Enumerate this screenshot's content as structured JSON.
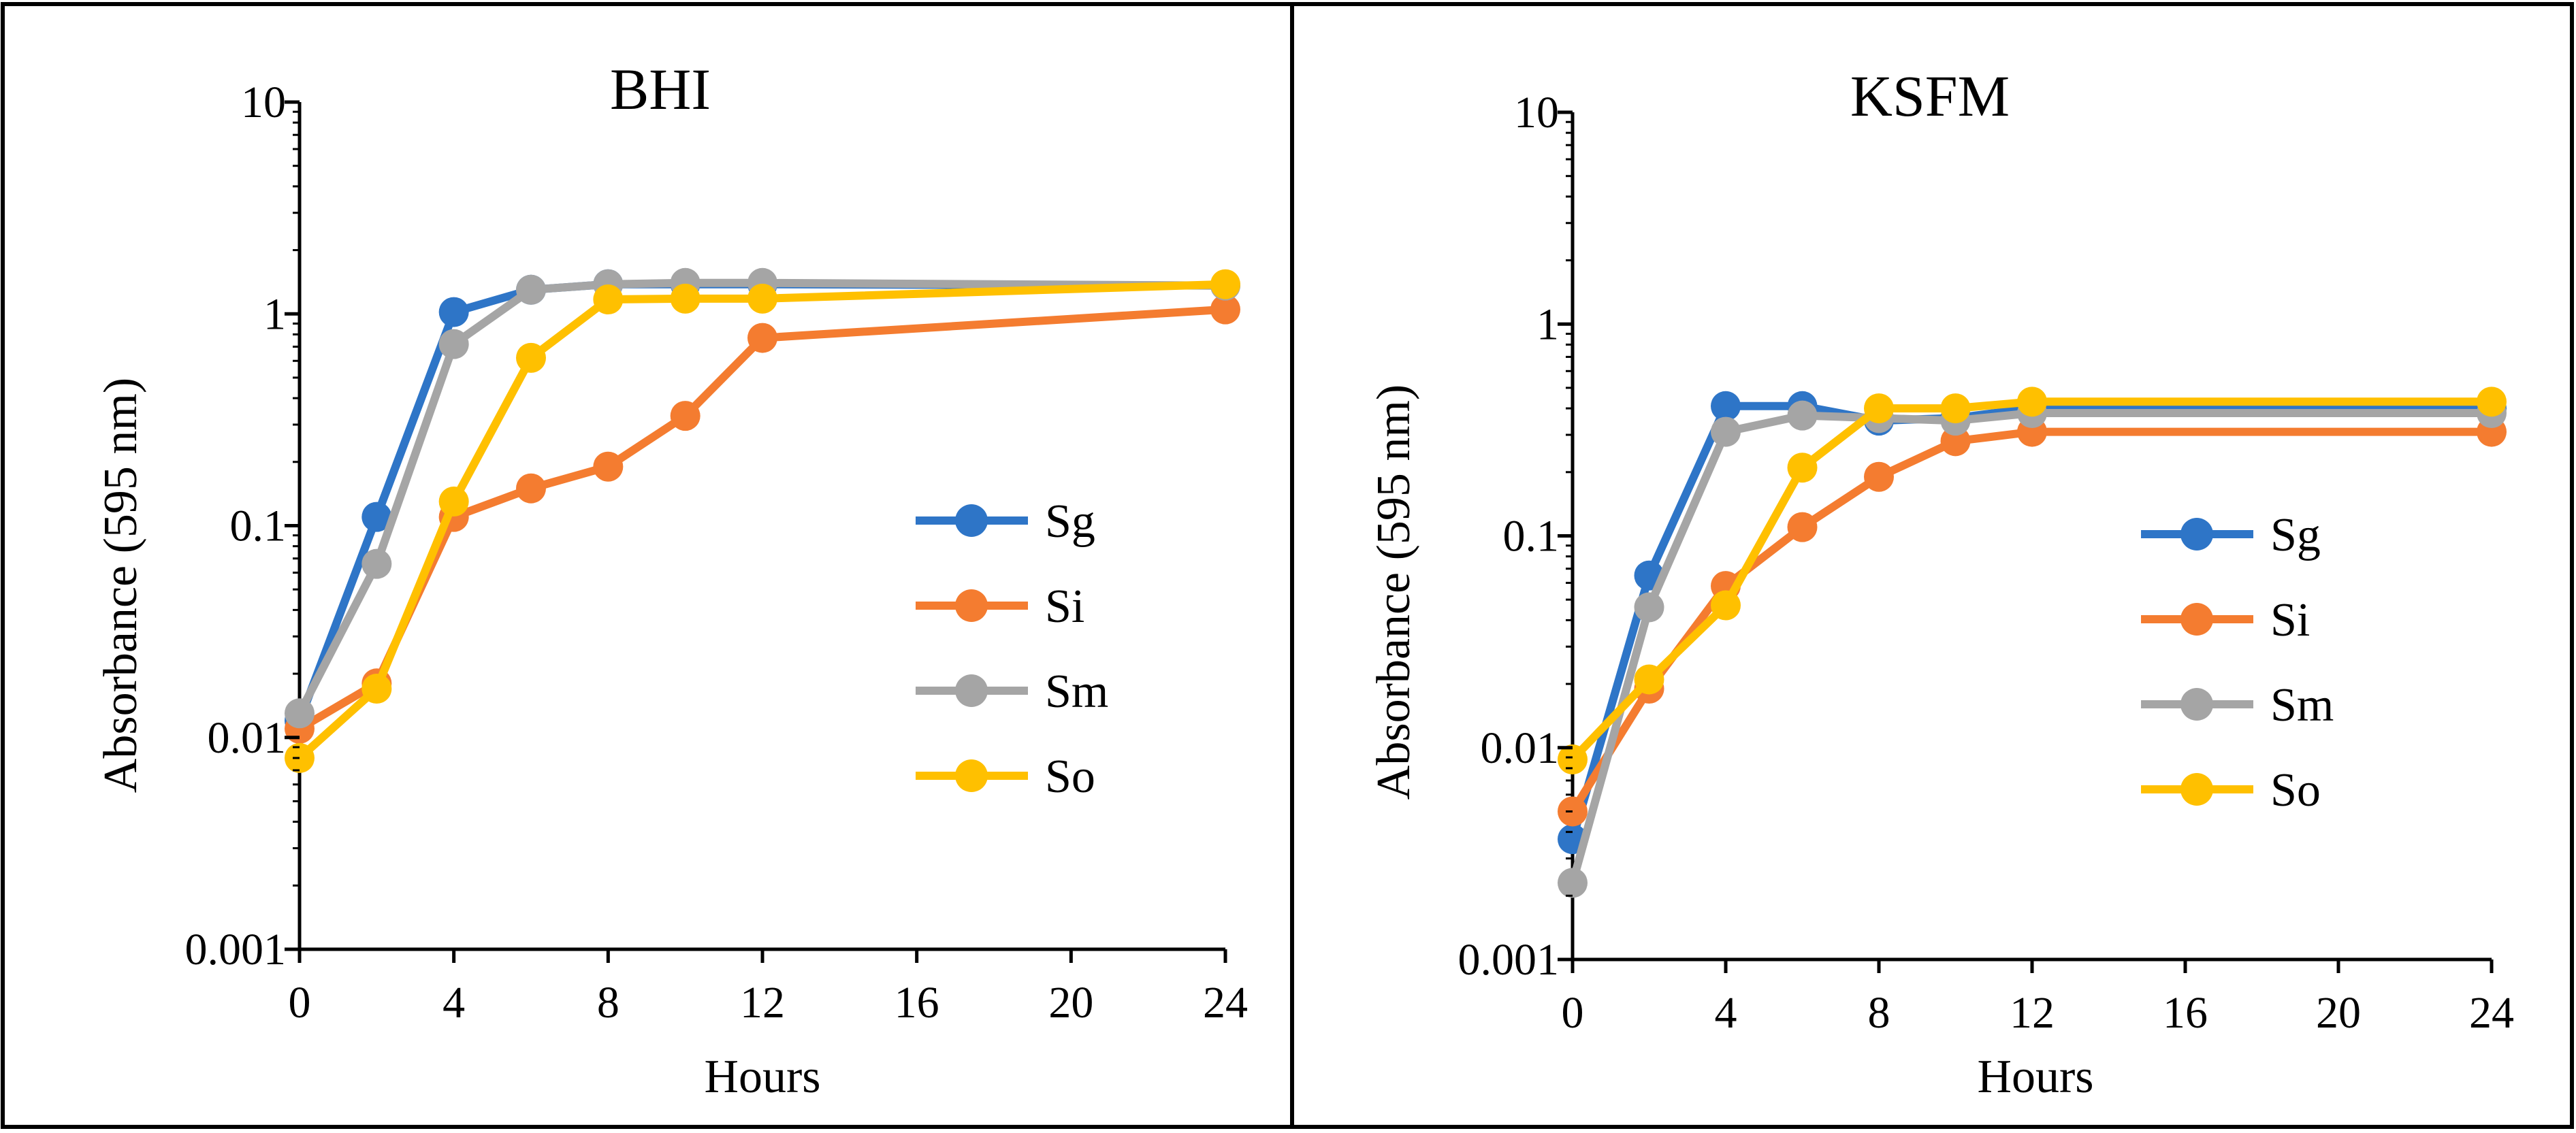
{
  "chart_data": [
    {
      "type": "line",
      "title": "BHI",
      "xlabel": "Hours",
      "ylabel": "Absorbance (595 nm)",
      "yscale": "log",
      "ylim": [
        0.001,
        10
      ],
      "xlim": [
        0,
        24
      ],
      "xticks": [
        0,
        4,
        8,
        12,
        16,
        20,
        24
      ],
      "yticks": [
        0.001,
        0.01,
        0.1,
        1,
        10
      ],
      "ytick_labels": [
        "0.001",
        "0.01",
        "0.1",
        "1",
        "10"
      ],
      "legend_position": "right",
      "series": [
        {
          "name": "Sg",
          "color": "#2E75C7",
          "x": [
            0,
            2,
            4,
            6,
            8,
            10,
            12,
            24
          ],
          "y": [
            0.012,
            0.11,
            1.02,
            1.3,
            1.38,
            1.38,
            1.38,
            1.36
          ]
        },
        {
          "name": "Si",
          "color": "#F47C30",
          "x": [
            0,
            2,
            4,
            6,
            8,
            10,
            12,
            24
          ],
          "y": [
            0.011,
            0.018,
            0.11,
            0.15,
            0.19,
            0.33,
            0.77,
            1.05
          ]
        },
        {
          "name": "Sm",
          "color": "#A5A5A5",
          "x": [
            0,
            2,
            4,
            6,
            8,
            10,
            12,
            24
          ],
          "y": [
            0.013,
            0.066,
            0.72,
            1.3,
            1.38,
            1.4,
            1.4,
            1.36
          ]
        },
        {
          "name": "So",
          "color": "#FFC000",
          "x": [
            0,
            2,
            4,
            6,
            8,
            10,
            12,
            24
          ],
          "y": [
            0.008,
            0.017,
            0.13,
            0.62,
            1.17,
            1.18,
            1.18,
            1.38
          ]
        }
      ]
    },
    {
      "type": "line",
      "title": "KSFM",
      "xlabel": "Hours",
      "ylabel": "Absorbance (595 nm)",
      "yscale": "log",
      "ylim": [
        0.001,
        10
      ],
      "xlim": [
        0,
        24
      ],
      "xticks": [
        0,
        4,
        8,
        12,
        16,
        20,
        24
      ],
      "yticks": [
        0.001,
        0.01,
        0.1,
        1,
        10
      ],
      "ytick_labels": [
        "0.001",
        "0.01",
        "0.1",
        "1",
        "10"
      ],
      "legend_position": "right",
      "series": [
        {
          "name": "Sg",
          "color": "#2E75C7",
          "x": [
            0,
            2,
            4,
            6,
            8,
            10,
            12,
            24
          ],
          "y": [
            0.0037,
            0.065,
            0.41,
            0.41,
            0.35,
            0.36,
            0.4,
            0.4
          ]
        },
        {
          "name": "Si",
          "color": "#F47C30",
          "x": [
            0,
            2,
            4,
            6,
            8,
            10,
            12,
            24
          ],
          "y": [
            0.005,
            0.019,
            0.058,
            0.11,
            0.19,
            0.28,
            0.31,
            0.31
          ]
        },
        {
          "name": "Sm",
          "color": "#A5A5A5",
          "x": [
            0,
            2,
            4,
            6,
            8,
            10,
            12,
            24
          ],
          "y": [
            0.0023,
            0.046,
            0.31,
            0.37,
            0.36,
            0.35,
            0.38,
            0.38
          ]
        },
        {
          "name": "So",
          "color": "#FFC000",
          "x": [
            0,
            2,
            4,
            6,
            8,
            10,
            12,
            24
          ],
          "y": [
            0.0088,
            0.021,
            0.047,
            0.21,
            0.4,
            0.4,
            0.43,
            0.43
          ]
        }
      ]
    }
  ]
}
